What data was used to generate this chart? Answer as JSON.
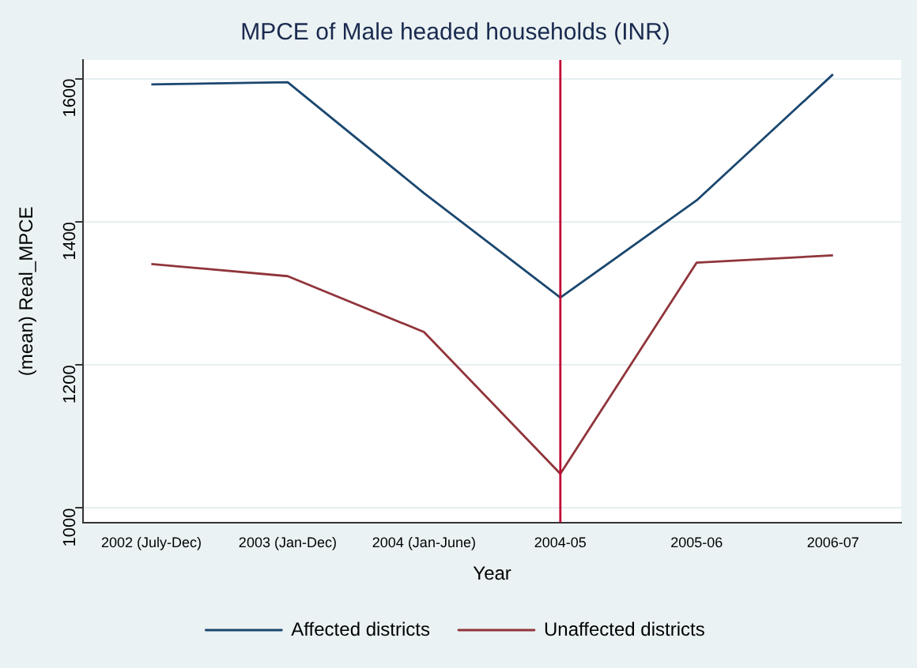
{
  "chart_data": {
    "type": "line",
    "title": "MPCE of Male headed households (INR)",
    "xlabel": "Year",
    "ylabel": "(mean) Real_MPCE",
    "categories": [
      "2002 (July-Dec)",
      "2003 (Jan-Dec)",
      "2004 (Jan-June)",
      "2004-05",
      "2005-06",
      "2006-07"
    ],
    "series": [
      {
        "name": "Affected districts",
        "color": "#1a476f",
        "values": [
          1592,
          1595,
          1440,
          1294,
          1430,
          1606
        ]
      },
      {
        "name": "Unaffected districts",
        "color": "#90353b",
        "values": [
          1341,
          1324,
          1246,
          1048,
          1343,
          1353
        ]
      }
    ],
    "ylim": [
      980,
      1626
    ],
    "yticks": [
      1000,
      1200,
      1400,
      1600
    ],
    "grid": "y",
    "legend": "bottom",
    "marker": "none",
    "line_style": "solid",
    "ref_lines": [
      {
        "axis": "x",
        "value": "2004-05",
        "color": "#c10534"
      }
    ]
  }
}
